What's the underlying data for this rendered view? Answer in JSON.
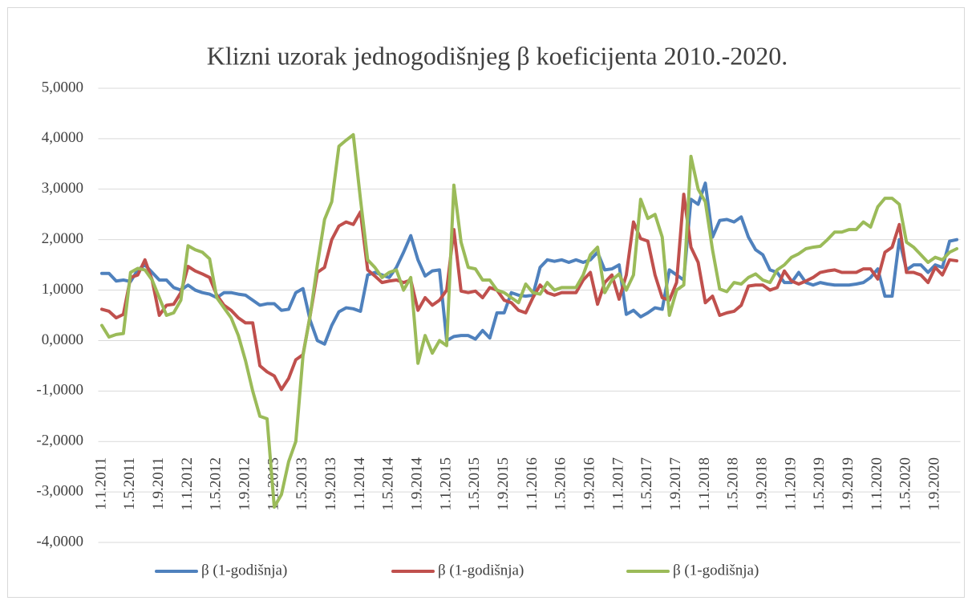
{
  "chart_data": {
    "type": "line",
    "title": "Klizni uzorak jednogodišnjeg β koeficijenta 2010.-2020.",
    "categories": [
      "1.1.2011",
      null,
      null,
      null,
      "1.5.2011",
      null,
      null,
      null,
      "1.9.2011",
      null,
      null,
      null,
      "1.1.2012",
      null,
      null,
      null,
      "1.5.2012",
      null,
      null,
      null,
      "1.9.2012",
      null,
      null,
      null,
      "1.1.2013",
      null,
      null,
      null,
      "1.5.2013",
      null,
      null,
      null,
      "1.9.2013",
      null,
      null,
      null,
      "1.1.2014",
      null,
      null,
      null,
      "1.5.2014",
      null,
      null,
      null,
      "1.9.2014",
      null,
      null,
      null,
      "1.1.2015",
      null,
      null,
      null,
      "1.5.2015",
      null,
      null,
      null,
      "1.9.2015",
      null,
      null,
      null,
      "1.1.2016",
      null,
      null,
      null,
      "1.5.2016",
      null,
      null,
      null,
      "1.9.2016",
      null,
      null,
      null,
      "1.1.2017",
      null,
      null,
      null,
      "1.5.2017",
      null,
      null,
      null,
      "1.9.2017",
      null,
      null,
      null,
      "1.1.2018",
      null,
      null,
      null,
      "1.5.2018",
      null,
      null,
      null,
      "1.9.2018",
      null,
      null,
      null,
      "1.1.2019",
      null,
      null,
      null,
      "1.5.2019",
      null,
      null,
      null,
      "1.9.2019",
      null,
      null,
      null,
      "1.1.2020",
      null,
      null,
      null,
      "1.5.2020",
      null,
      null,
      null,
      "1.9.2020",
      null,
      null,
      null
    ],
    "series": [
      {
        "name": "β (1-godišnja)",
        "color": "#4f81bd",
        "values": [
          1.33,
          1.33,
          1.18,
          1.2,
          1.17,
          1.4,
          1.5,
          1.35,
          1.2,
          1.2,
          1.05,
          1.0,
          1.1,
          1.0,
          0.95,
          0.92,
          0.85,
          0.95,
          0.95,
          0.92,
          0.9,
          0.8,
          0.7,
          0.73,
          0.73,
          0.6,
          0.62,
          0.95,
          1.03,
          0.4,
          0.0,
          -0.07,
          0.3,
          0.57,
          0.65,
          0.63,
          0.58,
          1.3,
          1.35,
          1.3,
          1.25,
          1.45,
          1.75,
          2.08,
          1.6,
          1.28,
          1.38,
          1.4,
          0.0,
          0.08,
          0.1,
          0.1,
          0.03,
          0.2,
          0.05,
          0.55,
          0.55,
          0.95,
          0.9,
          0.88,
          0.9,
          1.45,
          1.6,
          1.57,
          1.6,
          1.55,
          1.6,
          1.55,
          1.6,
          1.75,
          1.4,
          1.42,
          1.5,
          0.52,
          0.6,
          0.47,
          0.55,
          0.65,
          0.62,
          1.4,
          1.3,
          1.2,
          2.8,
          2.7,
          3.12,
          2.05,
          2.38,
          2.4,
          2.35,
          2.45,
          2.05,
          1.8,
          1.7,
          1.4,
          1.35,
          1.15,
          1.15,
          1.35,
          1.15,
          1.1,
          1.15,
          1.12,
          1.1,
          1.1,
          1.1,
          1.12,
          1.15,
          1.25,
          1.42,
          0.88,
          0.88,
          2.0,
          1.4,
          1.5,
          1.5,
          1.35,
          1.5,
          1.45,
          1.97,
          2.0
        ]
      },
      {
        "name": "β (1-godišnja)",
        "color": "#c0504d",
        "values": [
          0.62,
          0.58,
          0.45,
          0.52,
          1.25,
          1.3,
          1.6,
          1.2,
          0.5,
          0.7,
          0.72,
          0.95,
          1.47,
          1.38,
          1.32,
          1.25,
          0.9,
          0.7,
          0.6,
          0.45,
          0.35,
          0.35,
          -0.5,
          -0.62,
          -0.7,
          -0.97,
          -0.75,
          -0.38,
          -0.28,
          0.5,
          1.35,
          1.45,
          2.0,
          2.27,
          2.35,
          2.3,
          2.55,
          1.4,
          1.28,
          1.15,
          1.18,
          1.2,
          1.15,
          1.2,
          0.6,
          0.85,
          0.7,
          0.8,
          1.0,
          2.2,
          0.98,
          0.95,
          0.98,
          0.85,
          1.05,
          1.0,
          0.8,
          0.75,
          0.6,
          0.55,
          0.85,
          1.1,
          0.95,
          0.9,
          0.95,
          0.95,
          0.95,
          1.2,
          1.35,
          0.72,
          1.15,
          1.3,
          0.82,
          1.3,
          2.35,
          2.02,
          1.97,
          1.3,
          0.85,
          0.8,
          1.15,
          2.9,
          1.85,
          1.55,
          0.75,
          0.88,
          0.5,
          0.55,
          0.58,
          0.7,
          1.08,
          1.1,
          1.1,
          1.0,
          1.05,
          1.38,
          1.18,
          1.12,
          1.18,
          1.25,
          1.35,
          1.38,
          1.4,
          1.35,
          1.35,
          1.35,
          1.42,
          1.42,
          1.22,
          1.75,
          1.85,
          2.3,
          1.35,
          1.35,
          1.3,
          1.15,
          1.45,
          1.3,
          1.6,
          1.58
        ]
      },
      {
        "name": "β (1-godišnja)",
        "color": "#9bbb59",
        "values": [
          0.3,
          0.07,
          0.12,
          0.14,
          1.35,
          1.43,
          1.4,
          1.2,
          0.85,
          0.5,
          0.55,
          0.8,
          1.88,
          1.8,
          1.75,
          1.62,
          0.85,
          0.65,
          0.45,
          0.1,
          -0.4,
          -1.0,
          -1.5,
          -1.55,
          -3.3,
          -3.05,
          -2.4,
          -2.0,
          -0.3,
          0.5,
          1.5,
          2.4,
          2.75,
          3.85,
          3.97,
          4.08,
          2.8,
          1.6,
          1.45,
          1.25,
          1.35,
          1.4,
          1.0,
          1.25,
          -0.45,
          0.1,
          -0.25,
          0.0,
          -0.1,
          3.08,
          1.95,
          1.45,
          1.42,
          1.2,
          1.2,
          1.0,
          0.95,
          0.85,
          0.75,
          1.12,
          0.95,
          0.92,
          1.15,
          1.0,
          1.05,
          1.05,
          1.05,
          1.3,
          1.7,
          1.85,
          0.95,
          1.2,
          1.32,
          1.0,
          1.3,
          2.8,
          2.42,
          2.5,
          2.05,
          0.5,
          1.0,
          1.1,
          3.65,
          3.0,
          2.75,
          1.8,
          1.02,
          0.97,
          1.15,
          1.12,
          1.25,
          1.32,
          1.2,
          1.15,
          1.4,
          1.5,
          1.65,
          1.72,
          1.82,
          1.85,
          1.87,
          2.0,
          2.15,
          2.15,
          2.2,
          2.2,
          2.35,
          2.25,
          2.65,
          2.82,
          2.82,
          2.7,
          1.95,
          1.85,
          1.7,
          1.55,
          1.65,
          1.6,
          1.75,
          1.82
        ]
      }
    ],
    "ylim": [
      -4,
      5
    ],
    "yticks": [
      {
        "value": -4,
        "label": "-4,0000"
      },
      {
        "value": -3,
        "label": "-3,0000"
      },
      {
        "value": -2,
        "label": "-2,0000"
      },
      {
        "value": -1,
        "label": "-1,0000"
      },
      {
        "value": 0,
        "label": "0,0000"
      },
      {
        "value": 1,
        "label": "1,0000"
      },
      {
        "value": 2,
        "label": "2,0000"
      },
      {
        "value": 3,
        "label": "3,0000"
      },
      {
        "value": 4,
        "label": "4,0000"
      },
      {
        "value": 5,
        "label": "5,0000"
      }
    ],
    "grid": true,
    "legend": "bottom"
  }
}
